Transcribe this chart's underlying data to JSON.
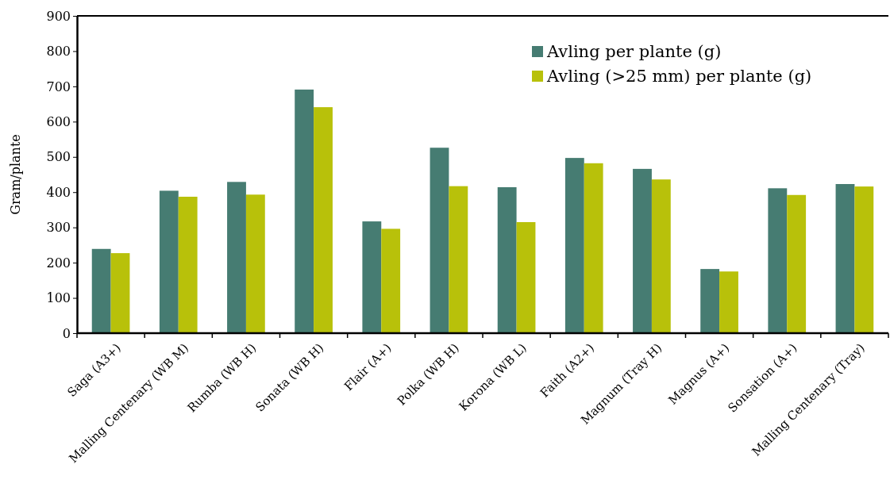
{
  "chart_data": {
    "type": "bar",
    "ylabel": "Gram/plante",
    "categories": [
      "Saga (A3+)",
      "Malling Centenary (WB M)",
      "Rumba (WB H)",
      "Sonata (WB H)",
      "Flair (A+)",
      "Polka (WB H)",
      "Korona (WB L)",
      "Faith (A2+)",
      "Magnum (Tray H)",
      "Magnus (A+)",
      "Sonsation (A+)",
      "Malling Centenary (Tray)"
    ],
    "series": [
      {
        "name": "Avling per plante (g)",
        "color": "#467c72",
        "values": [
          239,
          404,
          429,
          691,
          317,
          526,
          414,
          497,
          466,
          182,
          411,
          423
        ]
      },
      {
        "name": "Avling (>25 mm) per plante (g)",
        "color": "#b8c10a",
        "values": [
          227,
          387,
          393,
          641,
          296,
          417,
          315,
          482,
          436,
          175,
          392,
          416
        ]
      }
    ],
    "ylim": [
      0,
      900
    ],
    "yticks": [
      0,
      100,
      200,
      300,
      400,
      500,
      600,
      700,
      800,
      900
    ],
    "grid": false,
    "legend": "top right"
  }
}
